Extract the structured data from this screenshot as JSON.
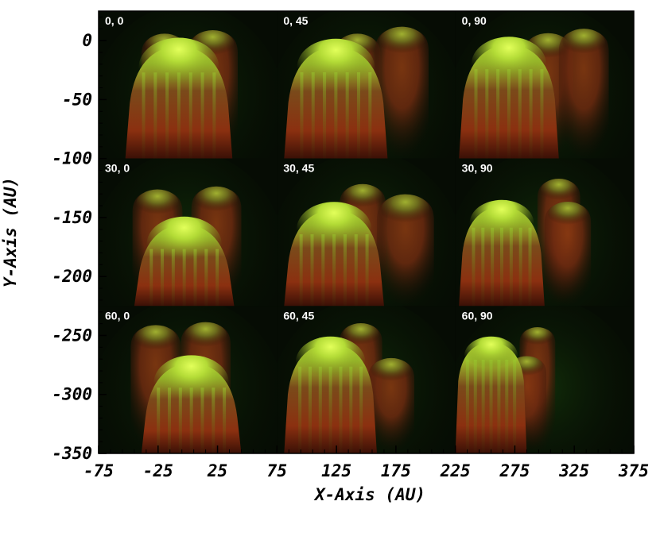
{
  "chart_data": {
    "type": "image-grid",
    "xlabel": "X-Axis (AU)",
    "ylabel": "Y-Axis (AU)",
    "xlim": [
      -75,
      375
    ],
    "ylim": [
      -350,
      25
    ],
    "xticks": [
      -75,
      -25,
      25,
      75,
      125,
      175,
      225,
      275,
      325,
      375
    ],
    "xtick_labels": [
      "-75",
      "-25",
      "25",
      "75",
      "125",
      "175",
      "225",
      "275",
      "325",
      "375"
    ],
    "yticks": [
      0,
      -50,
      -100,
      -150,
      -200,
      -250,
      -300,
      -350
    ],
    "ytick_labels": [
      "0",
      "-50",
      "-100",
      "-150",
      "-200",
      "-250",
      "-300",
      "-350"
    ],
    "colors": {
      "background": "#050a03",
      "tick": "#000000"
    },
    "panels": [
      {
        "label": "0, 0",
        "x_range": [
          -75,
          75
        ],
        "y_range": [
          -100,
          25
        ]
      },
      {
        "label": "0, 45",
        "x_range": [
          75,
          225
        ],
        "y_range": [
          -100,
          25
        ]
      },
      {
        "label": "0, 90",
        "x_range": [
          225,
          375
        ],
        "y_range": [
          -100,
          25
        ]
      },
      {
        "label": "30, 0",
        "x_range": [
          -75,
          75
        ],
        "y_range": [
          -225,
          -100
        ]
      },
      {
        "label": "30, 45",
        "x_range": [
          75,
          225
        ],
        "y_range": [
          -225,
          -100
        ]
      },
      {
        "label": "30, 90",
        "x_range": [
          225,
          375
        ],
        "y_range": [
          -225,
          -100
        ]
      },
      {
        "label": "60, 0",
        "x_range": [
          -75,
          75
        ],
        "y_range": [
          -350,
          -225
        ]
      },
      {
        "label": "60, 45",
        "x_range": [
          75,
          225
        ],
        "y_range": [
          -350,
          -225
        ]
      },
      {
        "label": "60, 90",
        "x_range": [
          225,
          375
        ],
        "y_range": [
          -350,
          -225
        ]
      }
    ]
  }
}
